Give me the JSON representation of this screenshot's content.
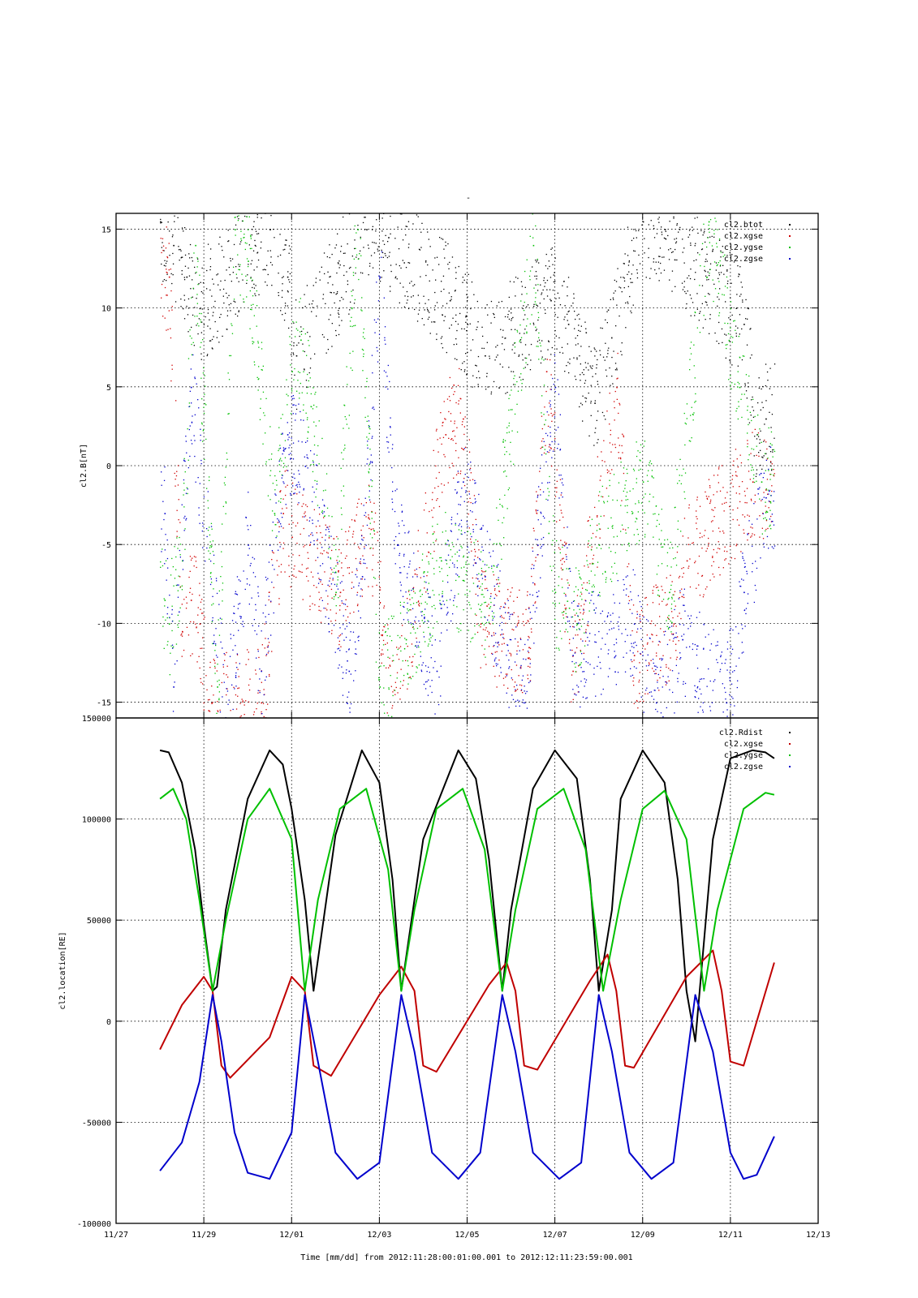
{
  "page_title": "-",
  "xaxis": {
    "label": "Time [mm/dd]  from 2012:11:28:00:01:00.001  to  2012:12:11:23:59:00.001",
    "ticks": [
      {
        "day": -1,
        "label": "11/27"
      },
      {
        "day": 1,
        "label": "11/29"
      },
      {
        "day": 3,
        "label": "12/01"
      },
      {
        "day": 5,
        "label": "12/03"
      },
      {
        "day": 7,
        "label": "12/05"
      },
      {
        "day": 9,
        "label": "12/07"
      },
      {
        "day": 11,
        "label": "12/09"
      },
      {
        "day": 13,
        "label": "12/11"
      },
      {
        "day": 15,
        "label": "12/13"
      }
    ],
    "range_days": [
      -1,
      15
    ],
    "data_start_day": 0,
    "data_end_day": 14
  },
  "chart_data": [
    {
      "type": "scatter",
      "ylabel": "cl2.B[nT]",
      "ylim": [
        -16,
        16
      ],
      "yticks": [
        {
          "value": 15,
          "label": "15"
        },
        {
          "value": 10,
          "label": "10"
        },
        {
          "value": 5,
          "label": "5"
        },
        {
          "value": 0,
          "label": "0"
        },
        {
          "value": -5,
          "label": "-5"
        },
        {
          "value": -10,
          "label": "-10"
        },
        {
          "value": -15,
          "label": "-15"
        }
      ],
      "grid": true,
      "legend_position": "top-right",
      "series": [
        {
          "name": "cl2.btot",
          "color": "#000000",
          "x": [
            0.0,
            0.3,
            0.6,
            0.9,
            2.5,
            2.9,
            3.1,
            4.7,
            5.2,
            6.6,
            7.0,
            7.4,
            8.9,
            9.3,
            9.9,
            11.0,
            11.5,
            13.3,
            13.6,
            13.8
          ],
          "y": [
            15.5,
            14.0,
            12.0,
            10.0,
            15.0,
            12.0,
            7.0,
            15.0,
            14.5,
            10.5,
            9.0,
            7.0,
            10.5,
            9.0,
            4.0,
            15.5,
            15.0,
            9.0,
            2.0,
            3.0
          ]
        },
        {
          "name": "cl2.xgse",
          "color": "#d00000",
          "x": [
            0.2,
            0.5,
            0.7,
            0.9,
            1.1,
            2.3,
            2.8,
            3.0,
            4.1,
            4.8,
            5.3,
            6.5,
            6.9,
            7.3,
            8.4,
            8.8,
            9.4,
            10.4,
            10.8,
            11.7,
            12.0,
            13.5,
            13.8
          ],
          "y": [
            12.0,
            -10.5,
            -8.5,
            -10.0,
            -15.5,
            -15.0,
            -3.0,
            -4.5,
            -8.0,
            -4.0,
            -16.0,
            2.0,
            3.0,
            -10.0,
            -11.5,
            6.0,
            -13.0,
            5.0,
            -12.0,
            -10.0,
            -6.0,
            -1.0,
            -1.5
          ]
        },
        {
          "name": "cl2.ygse",
          "color": "#00c000",
          "x": [
            0.1,
            0.2,
            0.5,
            0.8,
            1.3,
            1.7,
            2.0,
            2.6,
            3.0,
            3.2,
            4.0,
            4.5,
            5.0,
            5.6,
            6.4,
            6.8,
            7.5,
            8.5,
            9.0,
            9.5,
            10.0,
            11.0,
            11.6,
            12.5,
            13.2,
            13.7
          ],
          "y": [
            -8.5,
            -10.0,
            -6.0,
            14.0,
            -14.0,
            15.0,
            13.0,
            -3.0,
            6.0,
            8.0,
            -8.0,
            15.0,
            -14.0,
            -11.0,
            -6.0,
            -7.0,
            -9.0,
            14.0,
            -8.0,
            -10.0,
            -5.0,
            -1.0,
            -8.0,
            15.5,
            5.0,
            -1.0
          ]
        },
        {
          "name": "cl2.zgse",
          "color": "#0000cc",
          "x": [
            0.1,
            0.3,
            0.7,
            1.5,
            2.0,
            2.3,
            2.9,
            3.3,
            4.3,
            4.6,
            5.0,
            5.4,
            6.3,
            6.9,
            7.4,
            8.3,
            8.6,
            9.0,
            9.4,
            10.8,
            11.3,
            11.9,
            12.9,
            13.3,
            13.8
          ],
          "y": [
            -3.0,
            -14.0,
            5.0,
            -16.0,
            -5.0,
            -13.0,
            2.0,
            0.0,
            -13.0,
            -7.0,
            12.0,
            -5.0,
            -13.0,
            -1.0,
            -7.0,
            -15.0,
            -5.0,
            5.0,
            -12.0,
            -10.0,
            -15.0,
            -11.0,
            -15.0,
            -8.0,
            -2.0
          ]
        }
      ]
    },
    {
      "type": "line",
      "ylabel": "cl2.location[RE]",
      "ylim": [
        -100000,
        150000
      ],
      "yticks": [
        {
          "value": 150000,
          "label": "150000"
        },
        {
          "value": 100000,
          "label": "100000"
        },
        {
          "value": 50000,
          "label": "50000"
        },
        {
          "value": 0,
          "label": "0"
        },
        {
          "value": -50000,
          "label": "-50000"
        },
        {
          "value": -100000,
          "label": "-100000"
        }
      ],
      "grid": true,
      "legend_position": "top-right",
      "series": [
        {
          "name": "cl2.Rdist",
          "color": "#000000",
          "x": [
            0.0,
            0.2,
            0.5,
            0.8,
            1.0,
            1.2,
            1.3,
            1.5,
            2.0,
            2.5,
            2.8,
            3.0,
            3.3,
            3.5,
            4.0,
            4.6,
            5.0,
            5.3,
            5.5,
            6.0,
            6.8,
            7.2,
            7.5,
            7.8,
            8.0,
            8.5,
            9.0,
            9.5,
            9.8,
            10.0,
            10.3,
            10.5,
            11.0,
            11.5,
            11.8,
            12.0,
            12.2,
            12.6,
            13.0,
            13.5,
            13.8,
            14.0
          ],
          "y": [
            134000,
            133000,
            118000,
            85000,
            48000,
            15000,
            17000,
            55000,
            110000,
            134000,
            127000,
            105000,
            60000,
            15000,
            92000,
            134000,
            118000,
            70000,
            15000,
            90000,
            134000,
            120000,
            80000,
            15000,
            55000,
            115000,
            134000,
            120000,
            70000,
            15000,
            55000,
            110000,
            134000,
            118000,
            70000,
            15000,
            -10000,
            90000,
            130000,
            134000,
            133000,
            130000
          ]
        },
        {
          "name": "cl2.xgse",
          "color": "#c00000",
          "x": [
            0.0,
            0.5,
            1.0,
            1.2,
            1.4,
            1.6,
            2.5,
            3.0,
            3.3,
            3.5,
            3.9,
            5.0,
            5.5,
            5.8,
            6.0,
            6.3,
            7.5,
            7.9,
            8.1,
            8.3,
            8.6,
            9.8,
            10.2,
            10.4,
            10.6,
            10.8,
            12.0,
            12.6,
            12.8,
            13.0,
            13.3,
            14.0
          ],
          "y": [
            -14000,
            8000,
            22000,
            15000,
            -22000,
            -28000,
            -8000,
            22000,
            15000,
            -22000,
            -27000,
            13000,
            27000,
            15000,
            -22000,
            -25000,
            18000,
            29000,
            15000,
            -22000,
            -24000,
            20000,
            33000,
            15000,
            -22000,
            -23000,
            22000,
            35000,
            15000,
            -20000,
            -22000,
            29000
          ]
        },
        {
          "name": "cl2.ygse",
          "color": "#00c000",
          "x": [
            0.0,
            0.3,
            0.6,
            0.9,
            1.2,
            1.5,
            2.0,
            2.5,
            3.0,
            3.3,
            3.6,
            4.1,
            4.7,
            5.2,
            5.5,
            5.8,
            6.3,
            6.9,
            7.4,
            7.8,
            8.1,
            8.6,
            9.2,
            9.7,
            10.1,
            10.5,
            11.0,
            11.5,
            12.0,
            12.4,
            12.7,
            13.3,
            13.8,
            14.0
          ],
          "y": [
            110000,
            115000,
            100000,
            60000,
            15000,
            50000,
            100000,
            115000,
            90000,
            15000,
            60000,
            105000,
            115000,
            75000,
            15000,
            55000,
            105000,
            115000,
            85000,
            15000,
            55000,
            105000,
            115000,
            85000,
            15000,
            60000,
            105000,
            114000,
            90000,
            15000,
            55000,
            105000,
            113000,
            112000
          ]
        },
        {
          "name": "cl2.zgse",
          "color": "#0000cc",
          "x": [
            0.0,
            0.5,
            0.9,
            1.2,
            1.4,
            1.7,
            2.0,
            2.5,
            3.0,
            3.3,
            3.6,
            4.0,
            4.5,
            5.0,
            5.5,
            5.8,
            6.2,
            6.8,
            7.3,
            7.8,
            8.1,
            8.5,
            9.1,
            9.6,
            10.0,
            10.3,
            10.7,
            11.2,
            11.7,
            12.2,
            12.6,
            13.0,
            13.3,
            13.6,
            14.0
          ],
          "y": [
            -74000,
            -60000,
            -30000,
            13000,
            -10000,
            -55000,
            -75000,
            -78000,
            -55000,
            13000,
            -20000,
            -65000,
            -78000,
            -70000,
            13000,
            -15000,
            -65000,
            -78000,
            -65000,
            13000,
            -15000,
            -65000,
            -78000,
            -70000,
            13000,
            -15000,
            -65000,
            -78000,
            -70000,
            13000,
            -15000,
            -65000,
            -78000,
            -76000,
            -57000
          ]
        }
      ]
    }
  ]
}
